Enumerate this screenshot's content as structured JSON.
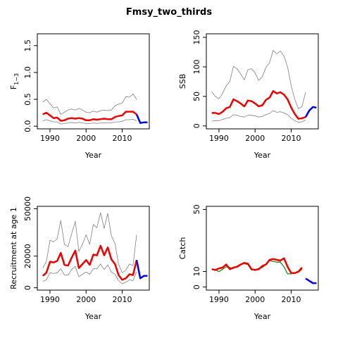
{
  "title": "Fmsy_two_thirds",
  "chart_data": [
    {
      "type": "line",
      "ylabel": "F1-3",
      "ylabel_main": "F",
      "ylabel_sub": "1−3",
      "xlabel": "Year",
      "xlim": [
        1986.5,
        2017.5
      ],
      "ylim": [
        -0.05,
        1.72
      ],
      "xticks": [
        "1990",
        "2000",
        "2010"
      ],
      "yticks": [
        "0.0",
        "0.5",
        "1.0",
        "1.5"
      ],
      "series": [
        {
          "role": "upper",
          "color": "#808080",
          "x": [
            1988,
            1989,
            1990,
            1991,
            1992,
            1993,
            1994,
            1995,
            1996,
            1997,
            1998,
            1999,
            2000,
            2001,
            2002,
            2003,
            2004,
            2005,
            2006,
            2007,
            2008,
            2009,
            2010,
            2011,
            2012,
            2013,
            2014
          ],
          "values": [
            0.45,
            0.5,
            0.42,
            0.34,
            0.36,
            0.22,
            0.26,
            0.3,
            0.32,
            0.3,
            0.33,
            0.3,
            0.26,
            0.25,
            0.28,
            0.26,
            0.29,
            0.3,
            0.29,
            0.3,
            0.38,
            0.41,
            0.43,
            0.55,
            0.54,
            0.6,
            0.5
          ]
        },
        {
          "role": "lower",
          "color": "#808080",
          "x": [
            1988,
            1989,
            1990,
            1991,
            1992,
            1993,
            1994,
            1995,
            1996,
            1997,
            1998,
            1999,
            2000,
            2001,
            2002,
            2003,
            2004,
            2005,
            2006,
            2007,
            2008,
            2009,
            2010,
            2011,
            2012,
            2013,
            2014
          ],
          "values": [
            0.1,
            0.12,
            0.1,
            0.08,
            0.08,
            0.04,
            0.05,
            0.06,
            0.07,
            0.06,
            0.07,
            0.06,
            0.05,
            0.05,
            0.06,
            0.05,
            0.06,
            0.06,
            0.06,
            0.06,
            0.08,
            0.08,
            0.09,
            0.12,
            0.12,
            0.13,
            0.1
          ]
        },
        {
          "role": "estimate",
          "color": "#ee0000",
          "x": [
            1988,
            1989,
            1990,
            1991,
            1992,
            1993,
            1994,
            1995,
            1996,
            1997,
            1998,
            1999,
            2000,
            2001,
            2002,
            2003,
            2004,
            2005,
            2006,
            2007,
            2008,
            2009,
            2010,
            2011,
            2012,
            2013,
            2014
          ],
          "values": [
            0.22,
            0.25,
            0.2,
            0.15,
            0.16,
            0.1,
            0.11,
            0.14,
            0.15,
            0.14,
            0.15,
            0.14,
            0.11,
            0.11,
            0.13,
            0.12,
            0.13,
            0.14,
            0.13,
            0.13,
            0.17,
            0.19,
            0.2,
            0.27,
            0.27,
            0.27,
            0.22
          ]
        },
        {
          "role": "projection",
          "color": "#0000ee",
          "x": [
            2014,
            2015,
            2016,
            2017
          ],
          "values": [
            0.22,
            0.06,
            0.07,
            0.07
          ]
        }
      ]
    },
    {
      "type": "line",
      "ylabel": "SSB",
      "xlabel": "Year",
      "xlim": [
        1986.5,
        2017.5
      ],
      "ylim": [
        -5,
        156
      ],
      "xticks": [
        "1990",
        "2000",
        "2010"
      ],
      "yticks": [
        "0",
        "50",
        "100",
        "150"
      ],
      "series": [
        {
          "role": "upper",
          "color": "#808080",
          "x": [
            1988,
            1989,
            1990,
            1991,
            1992,
            1993,
            1994,
            1995,
            1996,
            1997,
            1998,
            1999,
            2000,
            2001,
            2002,
            2003,
            2004,
            2005,
            2006,
            2007,
            2008,
            2009,
            2010,
            2011,
            2012,
            2013,
            2014
          ],
          "values": [
            58,
            50,
            46,
            55,
            68,
            75,
            101,
            97,
            88,
            78,
            95,
            97,
            90,
            77,
            83,
            99,
            107,
            128,
            122,
            127,
            118,
            100,
            68,
            45,
            29,
            33,
            57
          ]
        },
        {
          "role": "lower",
          "color": "#808080",
          "x": [
            1988,
            1989,
            1990,
            1991,
            1992,
            1993,
            1994,
            1995,
            1996,
            1997,
            1998,
            1999,
            2000,
            2001,
            2002,
            2003,
            2004,
            2005,
            2006,
            2007,
            2008,
            2009,
            2010,
            2011,
            2012,
            2013,
            2014
          ],
          "values": [
            8,
            9,
            9,
            11,
            13,
            14,
            19,
            18,
            16,
            15,
            18,
            18,
            17,
            15,
            16,
            19,
            21,
            26,
            23,
            24,
            22,
            19,
            13,
            9,
            6,
            7,
            10
          ]
        },
        {
          "role": "estimate",
          "color": "#ee0000",
          "x": [
            1988,
            1989,
            1990,
            1991,
            1992,
            1993,
            1994,
            1995,
            1996,
            1997,
            1998,
            1999,
            2000,
            2001,
            2002,
            2003,
            2004,
            2005,
            2006,
            2007,
            2008,
            2009,
            2010,
            2011,
            2012,
            2013,
            2014
          ],
          "values": [
            22,
            22,
            20,
            24,
            30,
            32,
            45,
            42,
            38,
            33,
            43,
            42,
            38,
            33,
            35,
            44,
            48,
            59,
            55,
            57,
            53,
            45,
            31,
            20,
            12,
            13,
            15
          ]
        },
        {
          "role": "projection",
          "color": "#0000ee",
          "x": [
            2014,
            2015,
            2016,
            2017
          ],
          "values": [
            15,
            26,
            32,
            31
          ]
        }
      ]
    },
    {
      "type": "line",
      "ylabel": "Recruitment at age 1",
      "xlabel": "Year",
      "xlim": [
        1986.5,
        2017.5
      ],
      "ylim": [
        -1500,
        51500
      ],
      "xticks": [
        "1990",
        "2000",
        "2010"
      ],
      "yticks": [
        "0",
        "20000",
        "50000"
      ],
      "series": [
        {
          "role": "upper",
          "color": "#808080",
          "x": [
            1988,
            1989,
            1990,
            1991,
            1992,
            1993,
            1994,
            1995,
            1996,
            1997,
            1998,
            1999,
            2000,
            2001,
            2002,
            2003,
            2004,
            2005,
            2006,
            2007,
            2008,
            2009,
            2010,
            2011,
            2012,
            2013,
            2014
          ],
          "values": [
            12500,
            16500,
            30000,
            29000,
            31000,
            42500,
            27500,
            26000,
            34000,
            42000,
            23000,
            27500,
            33500,
            27500,
            40000,
            38000,
            47500,
            37500,
            47000,
            33000,
            28000,
            15000,
            9500,
            11000,
            15000,
            14000,
            33500
          ]
        },
        {
          "role": "lower",
          "color": "#808080",
          "x": [
            1988,
            1989,
            1990,
            1991,
            1992,
            1993,
            1994,
            1995,
            1996,
            1997,
            1998,
            1999,
            2000,
            2001,
            2002,
            2003,
            2004,
            2005,
            2006,
            2007,
            2008,
            2009,
            2010,
            2011,
            2012,
            2013,
            2014
          ],
          "values": [
            4000,
            5000,
            9500,
            9000,
            9500,
            12000,
            8000,
            8000,
            11500,
            13500,
            7000,
            8500,
            10000,
            8500,
            12000,
            12000,
            15000,
            11500,
            14500,
            10000,
            8500,
            4500,
            2500,
            3500,
            5000,
            4500,
            10000
          ]
        },
        {
          "role": "estimate",
          "color": "#ee0000",
          "x": [
            1988,
            1989,
            1990,
            1991,
            1992,
            1993,
            1994,
            1995,
            1996,
            1997,
            1998,
            1999,
            2000,
            2001,
            2002,
            2003,
            2004,
            2005,
            2006,
            2007,
            2008,
            2009,
            2010,
            2011,
            2012,
            2013,
            2014
          ],
          "values": [
            7500,
            9500,
            16500,
            16000,
            17000,
            22000,
            14500,
            14000,
            19000,
            23500,
            12500,
            15000,
            17500,
            14500,
            21000,
            20500,
            26500,
            20500,
            25500,
            18000,
            15000,
            8000,
            5000,
            6000,
            8500,
            8000,
            17500
          ]
        },
        {
          "role": "projection",
          "color": "#0000ee",
          "x": [
            2014,
            2015,
            2016,
            2017
          ],
          "values": [
            17500,
            6000,
            7500,
            7500
          ]
        }
      ]
    },
    {
      "type": "line",
      "ylabel": "Catch",
      "xlabel": "Year",
      "xlim": [
        1986.5,
        2017.5
      ],
      "ylim": [
        -2,
        52
      ],
      "xticks": [
        "1990",
        "2000",
        "2010"
      ],
      "yticks": [
        "0",
        "10",
        "50"
      ],
      "series": [
        {
          "role": "observed",
          "color": "#228b22",
          "x": [
            1988,
            1989,
            1990,
            1991,
            1992,
            1993,
            1994,
            1995,
            1996,
            1997,
            1998,
            1999,
            2000,
            2001,
            2002,
            2003,
            2004,
            2005,
            2006,
            2007,
            2008,
            2009,
            2010,
            2011,
            2012,
            2013
          ],
          "values": [
            11.5,
            11.0,
            10.0,
            11.5,
            13.0,
            12.5,
            12.0,
            13.5,
            14.5,
            15.0,
            14.5,
            11.0,
            11.0,
            12.0,
            12.5,
            14.5,
            17.0,
            16.5,
            16.0,
            16.0,
            13.0,
            8.5,
            8.5,
            9.0,
            9.5,
            11.5
          ]
        },
        {
          "role": "estimate",
          "color": "#ee0000",
          "x": [
            1988,
            1989,
            1990,
            1991,
            1992,
            1993,
            1994,
            1995,
            1996,
            1997,
            1998,
            1999,
            2000,
            2001,
            2002,
            2003,
            2004,
            2005,
            2006,
            2007,
            2008,
            2009,
            2010,
            2011,
            2012,
            2013
          ],
          "values": [
            11.5,
            11.0,
            12.0,
            12.5,
            14.5,
            11.5,
            12.5,
            13.0,
            14.5,
            15.5,
            15.0,
            11.5,
            11.0,
            11.5,
            13.5,
            14.5,
            17.5,
            18.0,
            17.5,
            17.0,
            18.5,
            13.0,
            9.0,
            9.0,
            10.0,
            12.5
          ]
        },
        {
          "role": "projection",
          "color": "#0000ee",
          "x": [
            2014,
            2015,
            2016,
            2017
          ],
          "values": [
            5.5,
            4.0,
            2.5,
            2.5
          ]
        }
      ]
    }
  ]
}
